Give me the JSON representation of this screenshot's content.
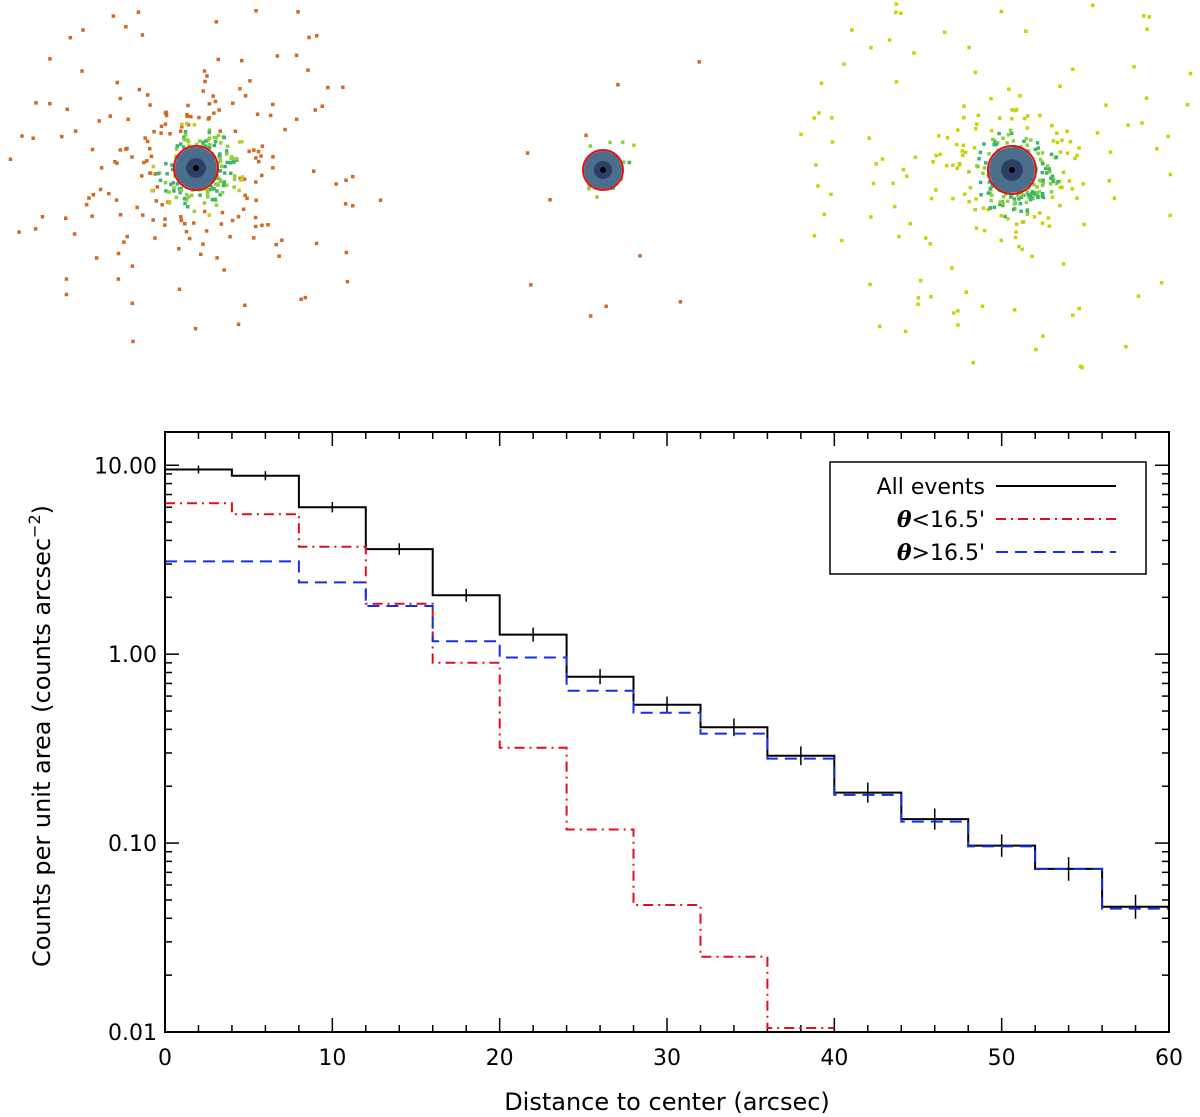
{
  "images": [
    {
      "name": "source-panel-left",
      "color": "#d2691e"
    },
    {
      "name": "source-panel-middle",
      "color": "#d2691e"
    },
    {
      "name": "source-panel-right",
      "color": "#c8d400"
    }
  ],
  "chart_data": {
    "type": "line",
    "step": true,
    "xlabel": "Distance to center (arcsec)",
    "ylabel_prefix": "Counts per unit area (counts arcsec",
    "ylabel_exp": "−2",
    "ylabel_suffix": ")",
    "xlim": [
      0,
      60
    ],
    "ylim": [
      0.01,
      15
    ],
    "yscale": "log",
    "xticks": [
      0,
      10,
      20,
      30,
      40,
      50,
      60
    ],
    "xtick_labels": [
      "0",
      "10",
      "20",
      "30",
      "40",
      "50",
      "60"
    ],
    "yticks": [
      0.01,
      0.1,
      1,
      10
    ],
    "ytick_labels": [
      "0.01",
      "0.10",
      "1.00",
      "10.00"
    ],
    "legend": {
      "position": "top-right"
    },
    "bin_edges": [
      0,
      4,
      8,
      12,
      16,
      20,
      24,
      28,
      32,
      36,
      40,
      44,
      48,
      52,
      56,
      60
    ],
    "series": [
      {
        "name": "All events",
        "label": "All events",
        "label_symbol": "",
        "label_rest": "All events",
        "color": "#000000",
        "dash": "",
        "errorbars": true,
        "values": [
          9.5,
          8.8,
          6.0,
          3.6,
          2.05,
          1.27,
          0.76,
          0.54,
          0.41,
          0.29,
          0.185,
          0.134,
          0.097,
          0.073,
          0.046
        ]
      },
      {
        "name": "theta-lt",
        "label": "θ<16.5'",
        "label_symbol": "θ",
        "label_rest": "<16.5'",
        "color": "#e0101a",
        "dash": "10 5 2 5",
        "errorbars": false,
        "values": [
          6.3,
          5.5,
          3.7,
          1.85,
          0.9,
          0.32,
          0.118,
          0.047,
          0.025,
          0.0105
        ]
      },
      {
        "name": "theta-gt",
        "label": "θ>16.5'",
        "label_symbol": "θ",
        "label_rest": ">16.5'",
        "color": "#1530e0",
        "dash": "12 7",
        "errorbars": false,
        "values": [
          3.1,
          3.1,
          2.4,
          1.8,
          1.17,
          0.96,
          0.64,
          0.49,
          0.38,
          0.28,
          0.18,
          0.13,
          0.096,
          0.073,
          0.045
        ]
      }
    ]
  }
}
